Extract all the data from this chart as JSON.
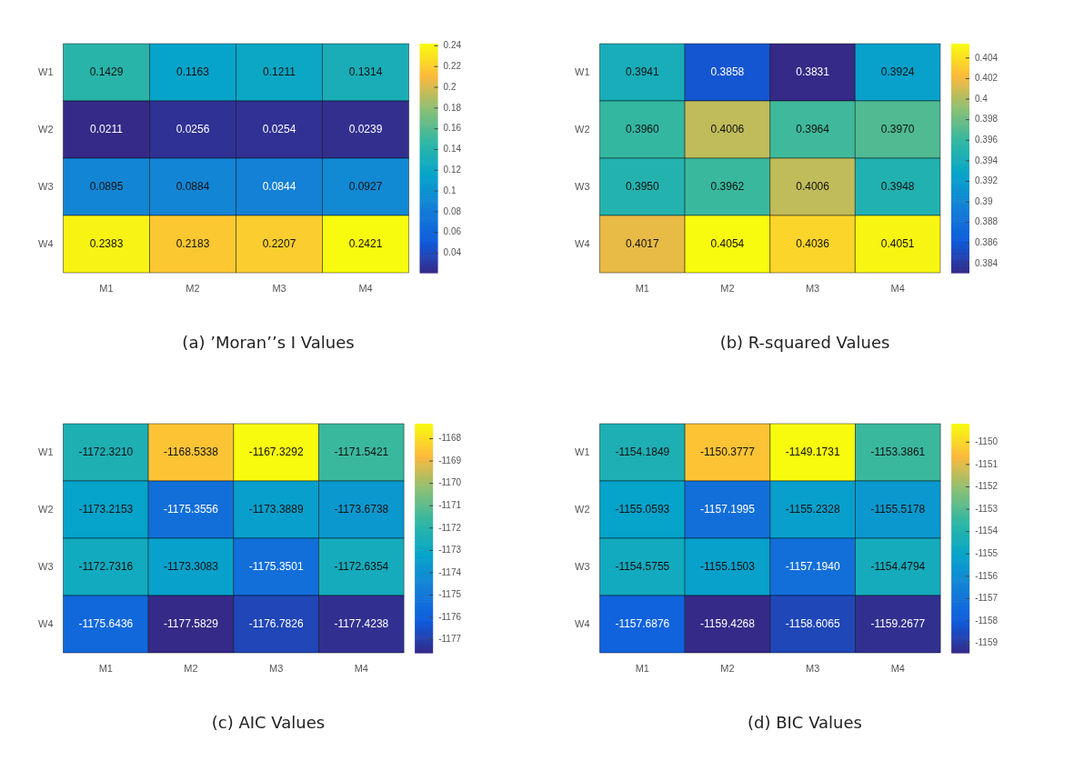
{
  "chart_data": [
    {
      "type": "heatmap",
      "title": "(a) ’Moran’’s I Values",
      "categories": [
        "M1",
        "M2",
        "M3",
        "M4"
      ],
      "y_categories": [
        "W1",
        "W2",
        "W3",
        "W4"
      ],
      "cells": [
        [
          0.1429,
          0.1163,
          0.1211,
          0.1314
        ],
        [
          0.0211,
          0.0256,
          0.0254,
          0.0239
        ],
        [
          0.0895,
          0.0884,
          0.0844,
          0.0927
        ],
        [
          0.2383,
          0.2183,
          0.2207,
          0.2421
        ]
      ],
      "clim": [
        0.0211,
        0.2421
      ],
      "cticks": [
        0.04,
        0.06,
        0.08,
        0.1,
        0.12,
        0.14,
        0.16,
        0.18,
        0.2,
        0.22,
        0.24
      ],
      "data_labels": true
    },
    {
      "type": "heatmap",
      "title": "(b) R-squared Values",
      "categories": [
        "M1",
        "M2",
        "M3",
        "M4"
      ],
      "y_categories": [
        "W1",
        "W2",
        "W3",
        "W4"
      ],
      "cells": [
        [
          0.3941,
          0.3858,
          0.3831,
          0.3924
        ],
        [
          0.396,
          0.4006,
          0.3964,
          0.397
        ],
        [
          0.395,
          0.3962,
          0.4006,
          0.3948
        ],
        [
          0.4017,
          0.4054,
          0.4036,
          0.4051
        ]
      ],
      "cell_labels": [
        [
          "0.3941",
          "0.3858",
          "0.3831",
          "0.3924"
        ],
        [
          "0.3960",
          "0.4006",
          "0.3964",
          "0.3970"
        ],
        [
          "0.3950",
          "0.3962",
          "0.4006",
          "0.3948"
        ],
        [
          "0.4017",
          "0.4054",
          "0.4036",
          "0.4051"
        ]
      ],
      "clim": [
        0.3831,
        0.4054
      ],
      "cticks": [
        0.384,
        0.386,
        0.388,
        0.39,
        0.392,
        0.394,
        0.396,
        0.398,
        0.4,
        0.402,
        0.404
      ],
      "data_labels": true
    },
    {
      "type": "heatmap",
      "title": "(c) AIC Values",
      "categories": [
        "M1",
        "M2",
        "M3",
        "M4"
      ],
      "y_categories": [
        "W1",
        "W2",
        "W3",
        "W4"
      ],
      "cells": [
        [
          -1172.321,
          -1168.5338,
          -1167.3292,
          -1171.5421
        ],
        [
          -1173.2153,
          -1175.3556,
          -1173.3889,
          -1173.6738
        ],
        [
          -1172.7316,
          -1173.3083,
          -1175.3501,
          -1172.6354
        ],
        [
          -1175.6436,
          -1177.5829,
          -1176.7826,
          -1177.4238
        ]
      ],
      "cell_labels": [
        [
          "-1172.3210",
          "-1168.5338",
          "-1167.3292",
          "-1171.5421"
        ],
        [
          "-1173.2153",
          "-1175.3556",
          "-1173.3889",
          "-1173.6738"
        ],
        [
          "-1172.7316",
          "-1173.3083",
          "-1175.3501",
          "-1172.6354"
        ],
        [
          "-1175.6436",
          "-1177.5829",
          "-1176.7826",
          "-1177.4238"
        ]
      ],
      "clim": [
        -1177.5829,
        -1167.3292
      ],
      "cticks": [
        -1177,
        -1176,
        -1175,
        -1174,
        -1173,
        -1172,
        -1171,
        -1170,
        -1169,
        -1168
      ],
      "data_labels": true
    },
    {
      "type": "heatmap",
      "title": "(d) BIC Values",
      "categories": [
        "M1",
        "M2",
        "M3",
        "M4"
      ],
      "y_categories": [
        "W1",
        "W2",
        "W3",
        "W4"
      ],
      "cells": [
        [
          -1154.1849,
          -1150.3777,
          -1149.1731,
          -1153.3861
        ],
        [
          -1155.0593,
          -1157.1995,
          -1155.2328,
          -1155.5178
        ],
        [
          -1154.5755,
          -1155.1503,
          -1157.194,
          -1154.4794
        ],
        [
          -1157.6876,
          -1159.4268,
          -1158.6065,
          -1159.2677
        ]
      ],
      "cell_labels": [
        [
          "-1154.1849",
          "-1150.3777",
          "-1149.1731",
          "-1153.3861"
        ],
        [
          "-1155.0593",
          "-1157.1995",
          "-1155.2328",
          "-1155.5178"
        ],
        [
          "-1154.5755",
          "-1155.1503",
          "-1157.1940",
          "-1154.4794"
        ],
        [
          "-1157.6876",
          "-1159.4268",
          "-1158.6065",
          "-1159.2677"
        ]
      ],
      "clim": [
        -1159.4268,
        -1149.1731
      ],
      "cticks": [
        -1159,
        -1158,
        -1157,
        -1156,
        -1155,
        -1154,
        -1153,
        -1152,
        -1151,
        -1150
      ],
      "data_labels": true
    }
  ]
}
